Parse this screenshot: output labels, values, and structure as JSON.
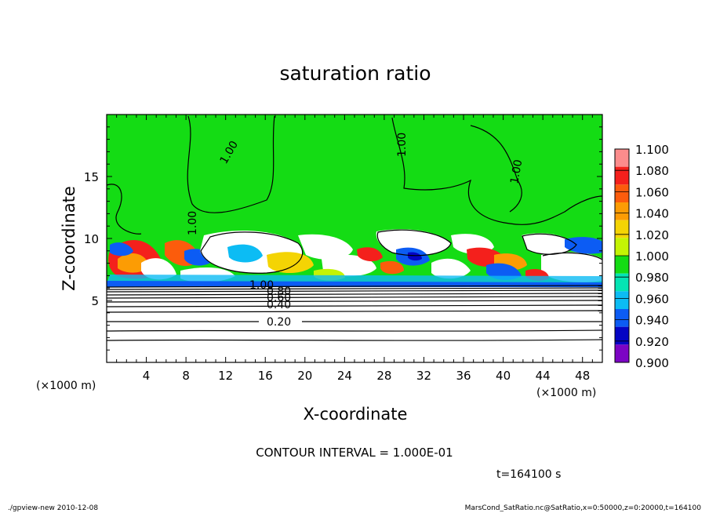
{
  "chart_data": {
    "type": "heatmap",
    "title": "saturation ratio",
    "xlabel": "X-coordinate",
    "ylabel": "Z-coordinate",
    "x_unit": "(×1000 m)",
    "y_unit": "(×1000 m)",
    "xlim": [
      0,
      50
    ],
    "ylim": [
      0,
      20
    ],
    "x_ticks": [
      4,
      8,
      12,
      16,
      20,
      24,
      28,
      32,
      36,
      40,
      44,
      48
    ],
    "y_ticks": [
      5,
      10,
      15
    ],
    "colorbar": {
      "min": 0.9,
      "max": 1.1,
      "levels": [
        "1.100",
        "1.080",
        "1.060",
        "1.040",
        "1.020",
        "1.000",
        "0.980",
        "0.960",
        "0.940",
        "0.920",
        "0.900"
      ],
      "colors": [
        "#fc8c8c",
        "#f4201c",
        "#fc5c0c",
        "#fc9c04",
        "#f4d404",
        "#c4f404",
        "#14dc14",
        "#04e4b4",
        "#0cbcf4",
        "#0c5cf4",
        "#0404c4",
        "#7c04c4"
      ]
    },
    "contour_labels": [
      "1.00",
      "1.00",
      "1.00",
      "1.00",
      "1.00",
      "0.80",
      "0.60",
      "0.40",
      "0.20"
    ],
    "contour_interval_text": "CONTOUR INTERVAL = 1.000E-01",
    "time_text": "t=164100 s"
  },
  "footer": {
    "left": "./gpview-new  2010-12-08",
    "right": "MarsCond_SatRatio.nc@SatRatio,x=0:50000,z=0:20000,t=164100"
  }
}
